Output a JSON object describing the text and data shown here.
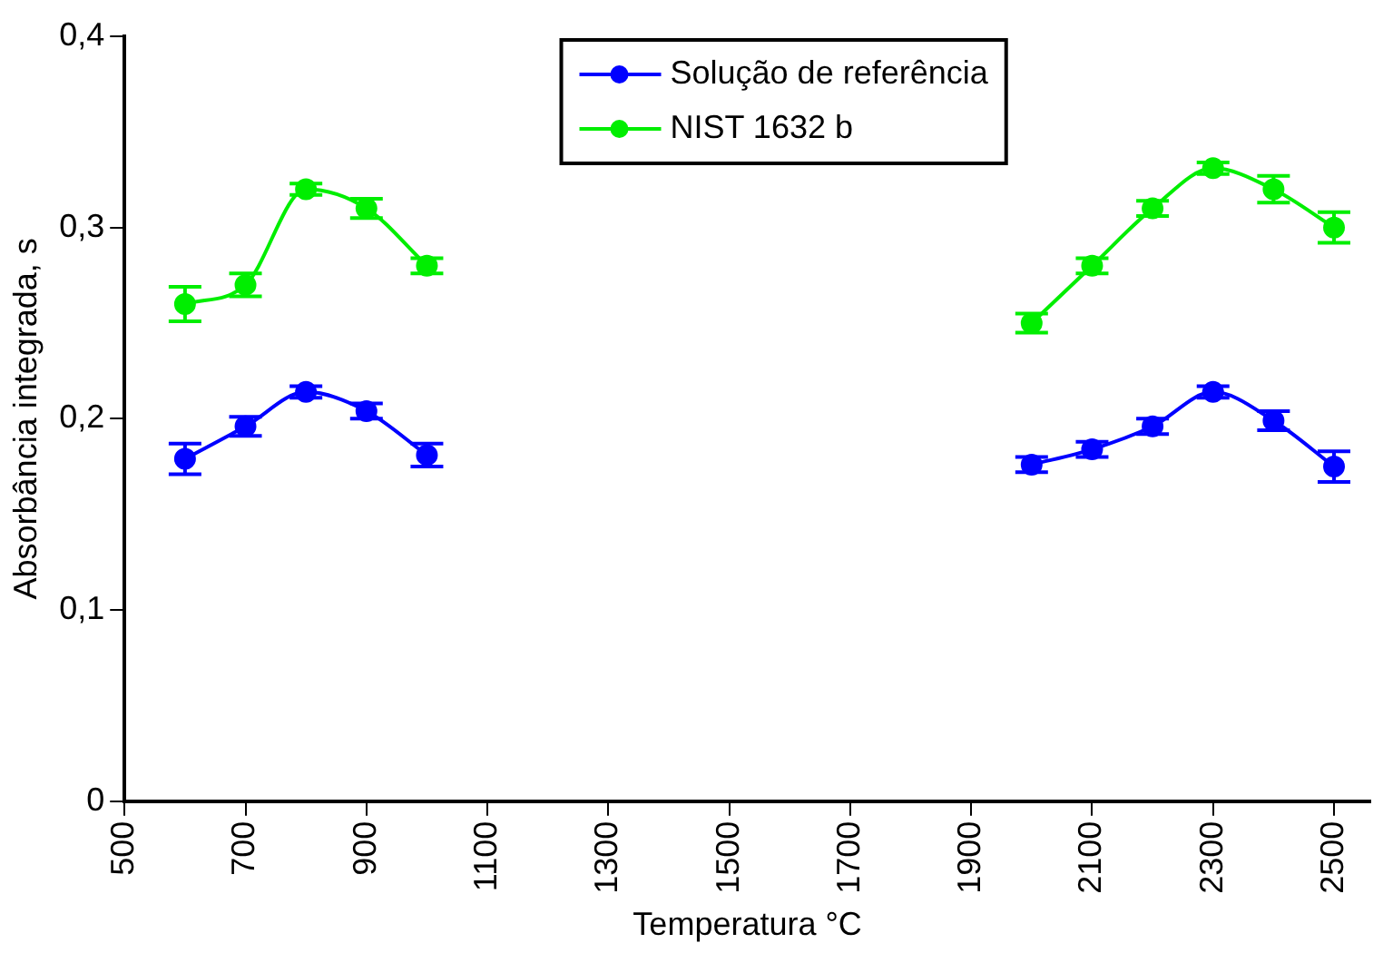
{
  "chart_data": {
    "type": "line",
    "xlabel": "Temperatura °C",
    "ylabel": "Absorbância integrada, s",
    "x": [
      600,
      700,
      800,
      900,
      1000,
      1500,
      2000,
      2100,
      2200,
      2300,
      2400,
      2500
    ],
    "series": [
      {
        "name": "Solução de referência",
        "color": "#0000ff",
        "values": [
          0.179,
          0.196,
          0.214,
          0.204,
          0.181,
          null,
          0.176,
          0.184,
          0.196,
          0.214,
          0.199,
          0.175
        ],
        "errors": [
          0.008,
          0.005,
          0.003,
          0.004,
          0.006,
          null,
          0.004,
          0.004,
          0.004,
          0.003,
          0.005,
          0.008
        ]
      },
      {
        "name": "NIST 1632 b",
        "color": "#00ee00",
        "values": [
          0.26,
          0.27,
          0.32,
          0.31,
          0.28,
          null,
          0.25,
          0.28,
          0.31,
          0.331,
          0.32,
          0.3
        ],
        "errors": [
          0.009,
          0.006,
          0.003,
          0.005,
          0.004,
          null,
          0.005,
          0.004,
          0.004,
          0.003,
          0.007,
          0.008
        ]
      }
    ],
    "xlim": [
      500,
      2560
    ],
    "xticks": [
      500,
      700,
      900,
      1100,
      1300,
      1500,
      1700,
      1900,
      2100,
      2300,
      2500
    ],
    "ylim": [
      0,
      0.4
    ],
    "yticks": [
      {
        "value": 0,
        "label": "0"
      },
      {
        "value": 0.1,
        "label": "0,1"
      },
      {
        "value": 0.2,
        "label": "0,2"
      },
      {
        "value": 0.3,
        "label": "0,3"
      },
      {
        "value": 0.4,
        "label": "0,4"
      }
    ],
    "grid": false,
    "legend": "top",
    "marker": "circle",
    "line_style": "solid"
  }
}
